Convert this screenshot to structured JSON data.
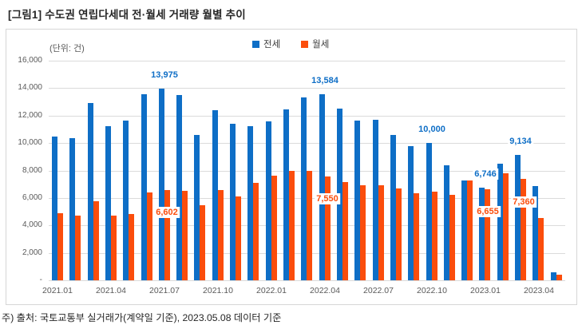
{
  "page": {
    "title": "[그림1] 수도권 연립다세대 전·월세 거래량 월별 추이",
    "footnote": "주) 출처: 국토교통부 실거래가(계약일 기준), 2023.05.08 데이터 기준"
  },
  "chart": {
    "unit_label": "(단위: 건)",
    "legend": [
      {
        "label": "전세",
        "color": "#0e6ec6"
      },
      {
        "label": "월세",
        "color": "#fb4d0c"
      }
    ]
  },
  "chart_data": {
    "type": "bar",
    "title": "수도권 연립다세대 전·월세 거래량 월별 추이",
    "unit": "건",
    "grid": true,
    "legend_position": "top",
    "categories": [
      "2021.01",
      "2021.02",
      "2021.03",
      "2021.04",
      "2021.05",
      "2021.06",
      "2021.07",
      "2021.08",
      "2021.09",
      "2021.10",
      "2021.11",
      "2021.12",
      "2022.01",
      "2022.02",
      "2022.03",
      "2022.04",
      "2022.05",
      "2022.06",
      "2022.07",
      "2022.08",
      "2022.09",
      "2022.10",
      "2022.11",
      "2022.12",
      "2023.01",
      "2023.02",
      "2023.03",
      "2023.04",
      "2023.05"
    ],
    "series": [
      {
        "name": "전세",
        "color": "#0e6ec6",
        "values": [
          10500,
          10350,
          12900,
          11200,
          11650,
          13550,
          13975,
          13500,
          10600,
          12400,
          11400,
          11250,
          11600,
          12450,
          13350,
          13584,
          12500,
          11650,
          11700,
          10600,
          9750,
          10000,
          8350,
          7300,
          6746,
          8500,
          9134,
          6850,
          600
        ]
      },
      {
        "name": "월세",
        "color": "#fb4d0c",
        "values": [
          4900,
          4700,
          5750,
          4700,
          4800,
          6400,
          6602,
          6500,
          5450,
          6600,
          6100,
          7100,
          7600,
          7950,
          7950,
          7550,
          7150,
          6950,
          6900,
          6700,
          6350,
          6450,
          6250,
          7300,
          6655,
          7800,
          7360,
          4550,
          420
        ]
      }
    ],
    "y_axis": {
      "min": 0,
      "max": 16000,
      "tick_step": 2000,
      "ticks": [
        {
          "v": 16000,
          "label": "16,000"
        },
        {
          "v": 14000,
          "label": "14,000"
        },
        {
          "v": 12000,
          "label": "12,000"
        },
        {
          "v": 10000,
          "label": "10,000"
        },
        {
          "v": 8000,
          "label": "8,000"
        },
        {
          "v": 6000,
          "label": "6,000"
        },
        {
          "v": 4000,
          "label": "4,000"
        },
        {
          "v": 2000,
          "label": "2,000"
        },
        {
          "v": 0,
          "label": "-"
        }
      ]
    },
    "x_axis": {
      "tick_interval": 3,
      "tick_labels": [
        "2021.01",
        "2021.04",
        "2021.07",
        "2021.10",
        "2022.01",
        "2022.04",
        "2022.07",
        "2022.10",
        "2023.01",
        "2023.04"
      ]
    },
    "data_labels": [
      {
        "index": 6,
        "series": 0,
        "text": "13,975"
      },
      {
        "index": 6,
        "series": 1,
        "text": "6,602"
      },
      {
        "index": 15,
        "series": 0,
        "text": "13,584"
      },
      {
        "index": 15,
        "series": 1,
        "text": "7,550"
      },
      {
        "index": 21,
        "series": 0,
        "text": "10,000"
      },
      {
        "index": 24,
        "series": 0,
        "text": "6,746"
      },
      {
        "index": 24,
        "series": 1,
        "text": "6,655"
      },
      {
        "index": 26,
        "series": 0,
        "text": "9,134"
      },
      {
        "index": 26,
        "series": 1,
        "text": "7,360"
      }
    ]
  }
}
